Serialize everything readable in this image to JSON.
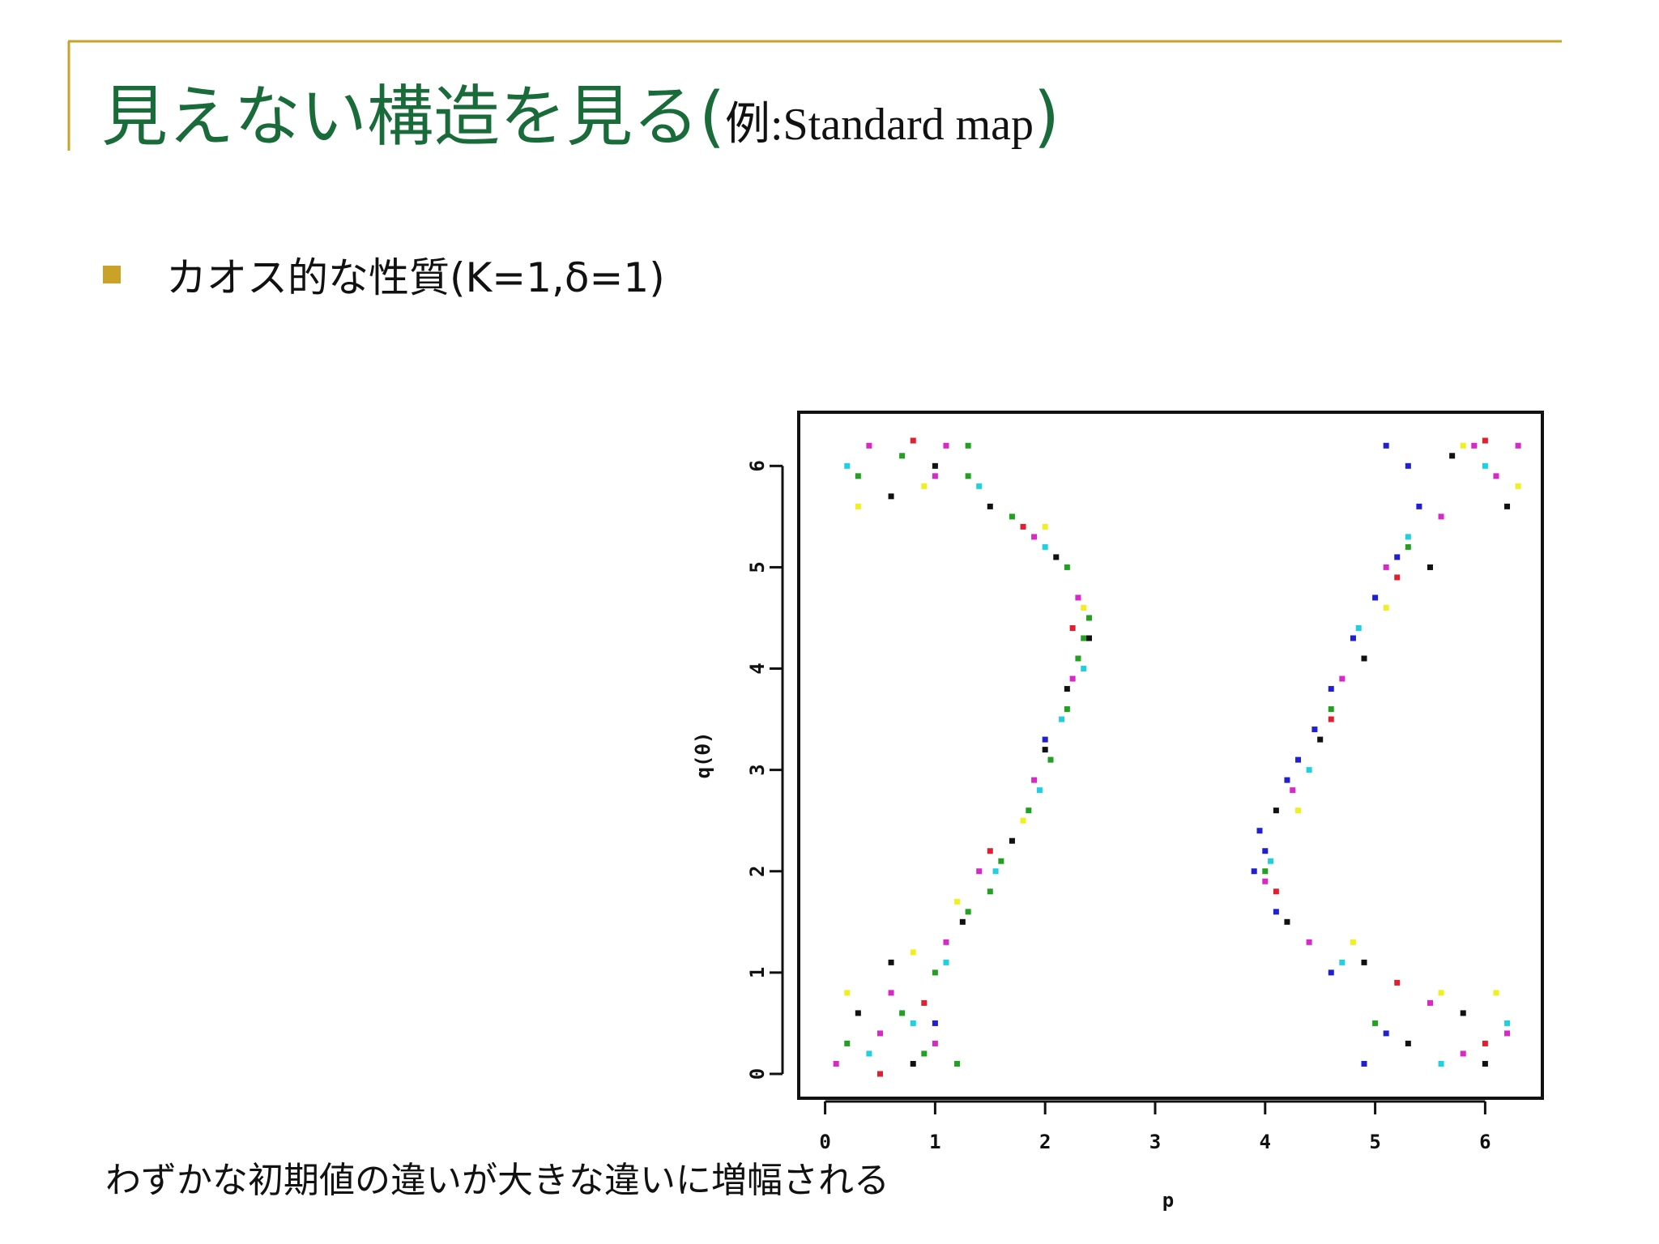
{
  "header": {
    "title_parts": [
      "見えない構造を見る(",
      "例:Standard map",
      ")"
    ]
  },
  "bullet": {
    "text": "カオス的な性質(K=1,δ=1)"
  },
  "caption": "わずかな初期値の違いが大きな違いに増幅される",
  "chart_data": {
    "type": "scatter",
    "x_label": "p",
    "y_label": "q(θ)",
    "xlim": [
      -0.24,
      6.52
    ],
    "ylim": [
      -0.24,
      6.53
    ],
    "xticks": [
      0,
      1,
      2,
      3,
      4,
      5,
      6
    ],
    "yticks": [
      0,
      1,
      2,
      3,
      4,
      5,
      6
    ],
    "series": [
      {
        "color": "#22a022",
        "x": [
          0.2,
          0.9,
          1.2,
          0.7,
          1.0,
          1.3,
          1.6,
          1.85,
          2.05,
          2.2,
          2.3,
          2.4,
          2.2,
          1.7,
          1.3,
          1.3,
          0.7,
          0.3,
          1.5,
          2.35,
          5.0,
          4.0,
          4.6,
          5.3
        ],
        "y": [
          0.3,
          0.2,
          0.1,
          0.6,
          1.0,
          1.6,
          2.1,
          2.6,
          3.1,
          3.6,
          4.1,
          4.5,
          5.0,
          5.5,
          5.9,
          6.2,
          6.1,
          5.9,
          1.8,
          4.3,
          0.5,
          2.0,
          3.6,
          5.2
        ]
      },
      {
        "color": "#2020d0",
        "x": [
          4.9,
          5.1,
          4.6,
          4.1,
          3.9,
          3.95,
          4.2,
          4.45,
          4.6,
          4.8,
          5.0,
          5.2,
          5.4,
          5.3,
          5.1,
          4.0,
          4.3,
          1.0,
          2.0
        ],
        "y": [
          0.1,
          0.4,
          1.0,
          1.6,
          2.0,
          2.4,
          2.9,
          3.4,
          3.8,
          4.3,
          4.7,
          5.1,
          5.6,
          6.0,
          6.2,
          2.2,
          3.1,
          0.5,
          3.3
        ]
      },
      {
        "color": "#d828c8",
        "x": [
          0.1,
          0.5,
          1.0,
          0.6,
          1.1,
          1.4,
          1.9,
          2.25,
          2.3,
          1.9,
          1.0,
          0.4,
          1.1,
          5.8,
          6.2,
          5.5,
          4.4,
          4.0,
          4.25,
          4.7,
          5.1,
          5.6,
          6.1,
          5.9,
          6.3
        ],
        "y": [
          0.1,
          0.4,
          0.3,
          0.8,
          1.3,
          2.0,
          2.9,
          3.9,
          4.7,
          5.3,
          5.9,
          6.2,
          6.2,
          0.2,
          0.4,
          0.7,
          1.3,
          1.9,
          2.8,
          3.9,
          5.0,
          5.5,
          5.9,
          6.2,
          6.2
        ]
      },
      {
        "color": "#111111",
        "x": [
          0.3,
          0.8,
          0.6,
          1.25,
          1.7,
          2.0,
          2.2,
          2.4,
          2.1,
          1.5,
          0.6,
          1.0,
          5.3,
          6.0,
          5.8,
          4.9,
          4.2,
          4.1,
          4.5,
          4.9,
          5.5,
          6.2,
          5.7
        ],
        "y": [
          0.6,
          0.1,
          1.1,
          1.5,
          2.3,
          3.2,
          3.8,
          4.3,
          5.1,
          5.6,
          5.7,
          6.0,
          0.3,
          0.1,
          0.6,
          1.1,
          1.5,
          2.6,
          3.3,
          4.1,
          5.0,
          5.6,
          6.1
        ]
      },
      {
        "color": "#20d0e0",
        "x": [
          0.4,
          0.8,
          1.1,
          1.55,
          1.95,
          2.15,
          2.35,
          2.0,
          1.4,
          0.2,
          5.6,
          6.2,
          4.7,
          4.05,
          4.4,
          4.85,
          5.3,
          6.0
        ],
        "y": [
          0.2,
          0.5,
          1.1,
          2.0,
          2.8,
          3.5,
          4.0,
          5.2,
          5.8,
          6.0,
          0.1,
          0.5,
          1.1,
          2.1,
          3.0,
          4.4,
          5.3,
          6.0
        ]
      },
      {
        "color": "#f0f020",
        "x": [
          0.2,
          0.8,
          1.2,
          1.8,
          2.35,
          2.0,
          0.3,
          0.9,
          6.1,
          5.6,
          4.8,
          4.3,
          5.1,
          6.3,
          5.8
        ],
        "y": [
          0.8,
          1.2,
          1.7,
          2.5,
          4.6,
          5.4,
          5.6,
          5.8,
          0.8,
          0.8,
          1.3,
          2.6,
          4.6,
          5.8,
          6.2
        ]
      },
      {
        "color": "#e02030",
        "x": [
          0.5,
          0.9,
          1.5,
          2.25,
          1.8,
          0.8,
          6.0,
          5.2,
          4.1,
          4.6,
          5.2,
          6.0
        ],
        "y": [
          0.0,
          0.7,
          2.2,
          4.4,
          5.4,
          6.25,
          0.3,
          0.9,
          1.8,
          3.5,
          4.9,
          6.25
        ]
      }
    ]
  }
}
